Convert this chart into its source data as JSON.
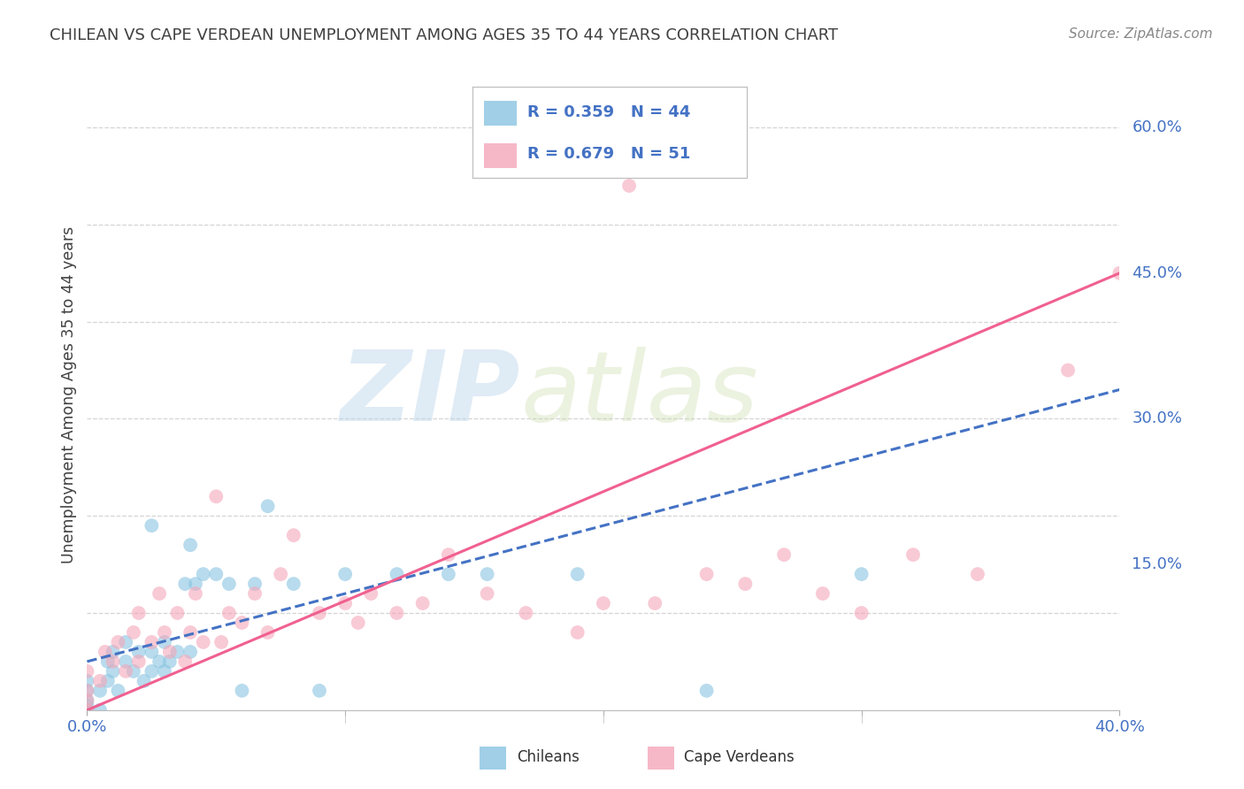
{
  "title": "CHILEAN VS CAPE VERDEAN UNEMPLOYMENT AMONG AGES 35 TO 44 YEARS CORRELATION CHART",
  "source": "Source: ZipAtlas.com",
  "ylabel": "Unemployment Among Ages 35 to 44 years",
  "xlim": [
    0.0,
    0.42
  ],
  "ylim": [
    -0.02,
    0.66
  ],
  "plot_xlim": [
    0.0,
    0.4
  ],
  "plot_ylim": [
    0.0,
    0.65
  ],
  "xtick_vals": [
    0.0,
    0.1,
    0.2,
    0.3,
    0.4
  ],
  "xtick_labels_show": [
    "0.0%",
    "",
    "",
    "",
    "40.0%"
  ],
  "ytick_vals": [
    0.15,
    0.3,
    0.45,
    0.6
  ],
  "ytick_labels": [
    "15.0%",
    "30.0%",
    "45.0%",
    "60.0%"
  ],
  "chilean_color": "#89c4e1",
  "capeverdean_color": "#f4a7b9",
  "chilean_line_color": "#4472c4",
  "capeverdean_line_color": "#f06090",
  "R_chilean": 0.359,
  "N_chilean": 44,
  "R_capeverdean": 0.679,
  "N_capeverdean": 51,
  "legend_label_chilean": "Chileans",
  "legend_label_capeverdean": "Cape Verdeans",
  "watermark_zip": "ZIP",
  "watermark_atlas": "atlas",
  "background_color": "#ffffff",
  "grid_color": "#d0d0d0",
  "tick_label_color": "#4472c4",
  "title_color": "#404040",
  "legend_text_color": "#4472c4",
  "chilean_line_slope": 0.7,
  "chilean_line_intercept": 0.05,
  "capeverdean_line_slope": 1.125,
  "capeverdean_line_intercept": 0.0,
  "chilean_scatter_x": [
    0.0,
    0.0,
    0.0,
    0.0,
    0.0,
    0.005,
    0.005,
    0.008,
    0.008,
    0.01,
    0.01,
    0.012,
    0.015,
    0.015,
    0.018,
    0.02,
    0.022,
    0.025,
    0.025,
    0.025,
    0.028,
    0.03,
    0.03,
    0.032,
    0.035,
    0.038,
    0.04,
    0.04,
    0.042,
    0.045,
    0.05,
    0.055,
    0.06,
    0.065,
    0.07,
    0.08,
    0.09,
    0.1,
    0.12,
    0.14,
    0.155,
    0.19,
    0.24,
    0.3
  ],
  "chilean_scatter_y": [
    0.0,
    0.005,
    0.01,
    0.02,
    0.03,
    0.0,
    0.02,
    0.03,
    0.05,
    0.04,
    0.06,
    0.02,
    0.05,
    0.07,
    0.04,
    0.06,
    0.03,
    0.04,
    0.06,
    0.19,
    0.05,
    0.04,
    0.07,
    0.05,
    0.06,
    0.13,
    0.06,
    0.17,
    0.13,
    0.14,
    0.14,
    0.13,
    0.02,
    0.13,
    0.21,
    0.13,
    0.02,
    0.14,
    0.14,
    0.14,
    0.14,
    0.14,
    0.02,
    0.14
  ],
  "cv_scatter_x": [
    0.0,
    0.0,
    0.0,
    0.0,
    0.005,
    0.007,
    0.01,
    0.012,
    0.015,
    0.018,
    0.02,
    0.02,
    0.025,
    0.028,
    0.03,
    0.032,
    0.035,
    0.038,
    0.04,
    0.042,
    0.045,
    0.05,
    0.052,
    0.055,
    0.06,
    0.065,
    0.07,
    0.075,
    0.08,
    0.09,
    0.1,
    0.105,
    0.11,
    0.12,
    0.13,
    0.14,
    0.155,
    0.17,
    0.19,
    0.2,
    0.21,
    0.22,
    0.24,
    0.255,
    0.27,
    0.285,
    0.3,
    0.32,
    0.345,
    0.38,
    0.4
  ],
  "cv_scatter_y": [
    0.0,
    0.01,
    0.02,
    0.04,
    0.03,
    0.06,
    0.05,
    0.07,
    0.04,
    0.08,
    0.05,
    0.1,
    0.07,
    0.12,
    0.08,
    0.06,
    0.1,
    0.05,
    0.08,
    0.12,
    0.07,
    0.22,
    0.07,
    0.1,
    0.09,
    0.12,
    0.08,
    0.14,
    0.18,
    0.1,
    0.11,
    0.09,
    0.12,
    0.1,
    0.11,
    0.16,
    0.12,
    0.1,
    0.08,
    0.11,
    0.54,
    0.11,
    0.14,
    0.13,
    0.16,
    0.12,
    0.1,
    0.16,
    0.14,
    0.35,
    0.45
  ]
}
